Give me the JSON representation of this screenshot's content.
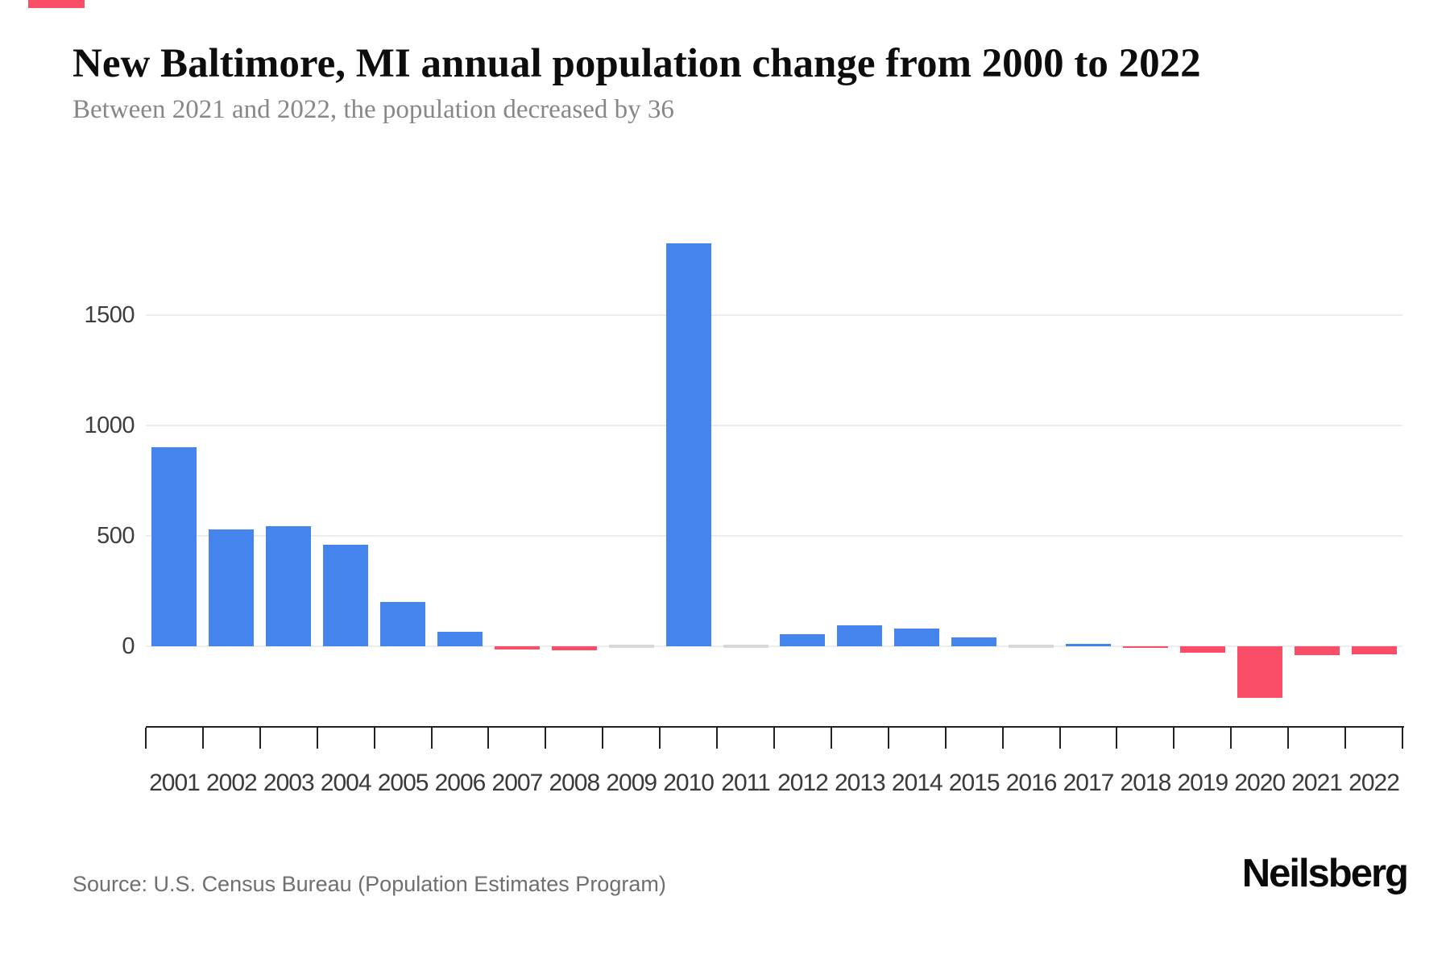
{
  "accent": {
    "top_strip_color": "#FA4D68"
  },
  "header": {
    "title": "New Baltimore, MI annual population change from 2000 to 2022",
    "subtitle": "Between 2021 and 2022, the population decreased by 36"
  },
  "footer": {
    "source": "Source: U.S. Census Bureau (Population Estimates Program)",
    "brand": "Neilsberg"
  },
  "chart_data": {
    "type": "bar",
    "title": "New Baltimore, MI annual population change from 2000 to 2022",
    "subtitle": "Between 2021 and 2022, the population decreased by 36",
    "categories": [
      "2001",
      "2002",
      "2003",
      "2004",
      "2005",
      "2006",
      "2007",
      "2008",
      "2009",
      "2010",
      "2011",
      "2012",
      "2013",
      "2014",
      "2015",
      "2016",
      "2017",
      "2018",
      "2019",
      "2020",
      "2021",
      "2022"
    ],
    "values": [
      900,
      530,
      545,
      460,
      200,
      65,
      -15,
      -20,
      0,
      1825,
      0,
      55,
      95,
      80,
      40,
      0,
      10,
      -8,
      -30,
      -235,
      -40,
      -36
    ],
    "xlabel": "",
    "ylabel": "",
    "yticks": [
      0,
      500,
      1000,
      1500
    ],
    "ylim": [
      -365,
      2015
    ],
    "grid": "horizontal",
    "legend": "none",
    "colors": {
      "positive": "#4584EC",
      "negative": "#FA4D68",
      "zero": "#D8D8D8"
    }
  }
}
